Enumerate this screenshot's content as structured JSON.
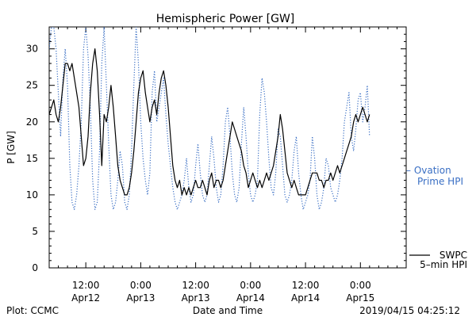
{
  "chart_data": {
    "type": "line",
    "title": "Hemispheric Power [GW]",
    "xlabel": "Date and Time",
    "ylabel": "P [GW]",
    "ylim": [
      0,
      33
    ],
    "xlim_hours": [
      0,
      78
    ],
    "yticks": [
      0,
      5,
      10,
      15,
      20,
      25,
      30
    ],
    "xticks": [
      {
        "hour": 8,
        "line1": "12:00",
        "line2": "Apr12"
      },
      {
        "hour": 20,
        "line1": "0:00",
        "line2": "Apr13"
      },
      {
        "hour": 32,
        "line1": "12:00",
        "line2": "Apr13"
      },
      {
        "hour": 44,
        "line1": "0:00",
        "line2": "Apr14"
      },
      {
        "hour": 56,
        "line1": "12:00",
        "line2": "Apr14"
      },
      {
        "hour": 68,
        "line1": "0:00",
        "line2": "Apr15"
      }
    ],
    "grid": false,
    "legend_position": "right",
    "series": [
      {
        "name": "SWPC 5-min HPI",
        "legend_lines": [
          "SWPC",
          "5–min HPI"
        ],
        "color": "#000000",
        "style": "solid",
        "points": [
          [
            0,
            21
          ],
          [
            0.5,
            22
          ],
          [
            1,
            23
          ],
          [
            1.5,
            21
          ],
          [
            2,
            20
          ],
          [
            2.5,
            22
          ],
          [
            3,
            25
          ],
          [
            3.5,
            28
          ],
          [
            4,
            28
          ],
          [
            4.5,
            27
          ],
          [
            5,
            28
          ],
          [
            5.5,
            26
          ],
          [
            6,
            24
          ],
          [
            6.5,
            22
          ],
          [
            7,
            18
          ],
          [
            7.5,
            14
          ],
          [
            8,
            15
          ],
          [
            8.5,
            18
          ],
          [
            9,
            24
          ],
          [
            9.5,
            28
          ],
          [
            10,
            30
          ],
          [
            10.5,
            27
          ],
          [
            11,
            21
          ],
          [
            11.5,
            14
          ],
          [
            12,
            21
          ],
          [
            12.5,
            20
          ],
          [
            13,
            22
          ],
          [
            13.5,
            25
          ],
          [
            14,
            22
          ],
          [
            14.5,
            18
          ],
          [
            15,
            14
          ],
          [
            15.5,
            12
          ],
          [
            16,
            11
          ],
          [
            16.5,
            10
          ],
          [
            17,
            10
          ],
          [
            17.5,
            11
          ],
          [
            18,
            13
          ],
          [
            18.5,
            16
          ],
          [
            19,
            20
          ],
          [
            19.5,
            24
          ],
          [
            20,
            26
          ],
          [
            20.5,
            27
          ],
          [
            21,
            24
          ],
          [
            21.5,
            22
          ],
          [
            22,
            20
          ],
          [
            22.5,
            22
          ],
          [
            23,
            23
          ],
          [
            23.5,
            21
          ],
          [
            24,
            24
          ],
          [
            24.5,
            26
          ],
          [
            25,
            27
          ],
          [
            25.5,
            25
          ],
          [
            26,
            22
          ],
          [
            26.5,
            18
          ],
          [
            27,
            14
          ],
          [
            27.5,
            12
          ],
          [
            28,
            11
          ],
          [
            28.5,
            12
          ],
          [
            29,
            10
          ],
          [
            29.5,
            11
          ],
          [
            30,
            10
          ],
          [
            30.5,
            11
          ],
          [
            31,
            10
          ],
          [
            31.5,
            11
          ],
          [
            32,
            12
          ],
          [
            32.5,
            11
          ],
          [
            33,
            11
          ],
          [
            33.5,
            12
          ],
          [
            34,
            11
          ],
          [
            34.5,
            10
          ],
          [
            35,
            12
          ],
          [
            35.5,
            13
          ],
          [
            36,
            11
          ],
          [
            36.5,
            12
          ],
          [
            37,
            12
          ],
          [
            37.5,
            11
          ],
          [
            38,
            12
          ],
          [
            38.5,
            14
          ],
          [
            39,
            16
          ],
          [
            39.5,
            18
          ],
          [
            40,
            20
          ],
          [
            40.5,
            19
          ],
          [
            41,
            18
          ],
          [
            41.5,
            17
          ],
          [
            42,
            16
          ],
          [
            42.5,
            14
          ],
          [
            43,
            13
          ],
          [
            43.5,
            11
          ],
          [
            44,
            12
          ],
          [
            44.5,
            13
          ],
          [
            45,
            12
          ],
          [
            45.5,
            11
          ],
          [
            46,
            12
          ],
          [
            46.5,
            11
          ],
          [
            47,
            12
          ],
          [
            47.5,
            13
          ],
          [
            48,
            12
          ],
          [
            48.5,
            13
          ],
          [
            49,
            14
          ],
          [
            49.5,
            16
          ],
          [
            50,
            18
          ],
          [
            50.5,
            21
          ],
          [
            51,
            19
          ],
          [
            51.5,
            16
          ],
          [
            52,
            13
          ],
          [
            52.5,
            12
          ],
          [
            53,
            11
          ],
          [
            53.5,
            12
          ],
          [
            54,
            11
          ],
          [
            54.5,
            10
          ],
          [
            55,
            10
          ],
          [
            55.5,
            10
          ],
          [
            56,
            10
          ],
          [
            56.5,
            11
          ],
          [
            57,
            12
          ],
          [
            57.5,
            13
          ],
          [
            58,
            13
          ],
          [
            58.5,
            13
          ],
          [
            59,
            12
          ],
          [
            59.5,
            12
          ],
          [
            60,
            11
          ],
          [
            60.5,
            12
          ],
          [
            61,
            12
          ],
          [
            61.5,
            13
          ],
          [
            62,
            12
          ],
          [
            62.5,
            13
          ],
          [
            63,
            14
          ],
          [
            63.5,
            13
          ],
          [
            64,
            14
          ],
          [
            64.5,
            15
          ],
          [
            65,
            16
          ],
          [
            65.5,
            17
          ],
          [
            66,
            18
          ],
          [
            66.5,
            20
          ],
          [
            67,
            21
          ],
          [
            67.5,
            20
          ],
          [
            68,
            21
          ],
          [
            68.5,
            22
          ],
          [
            69,
            21
          ],
          [
            69.5,
            20
          ],
          [
            70,
            21
          ]
        ]
      },
      {
        "name": "Ovation Prime HPI",
        "legend_lines": [
          "– Ovation",
          "Prime HPI"
        ],
        "color": "#3a6fc4",
        "style": "dotted",
        "points": [
          [
            0,
            30
          ],
          [
            0.5,
            33
          ],
          [
            1,
            33
          ],
          [
            1.5,
            30
          ],
          [
            2,
            24
          ],
          [
            2.5,
            18
          ],
          [
            3,
            26
          ],
          [
            3.5,
            30
          ],
          [
            4,
            25
          ],
          [
            4.5,
            14
          ],
          [
            5,
            9
          ],
          [
            5.5,
            8
          ],
          [
            6,
            10
          ],
          [
            6.5,
            14
          ],
          [
            7,
            20
          ],
          [
            7.5,
            30
          ],
          [
            8,
            33
          ],
          [
            8.5,
            29
          ],
          [
            9,
            22
          ],
          [
            9.5,
            12
          ],
          [
            10,
            8
          ],
          [
            10.5,
            9
          ],
          [
            11,
            16
          ],
          [
            11.5,
            28
          ],
          [
            12,
            33
          ],
          [
            12.5,
            25
          ],
          [
            13,
            17
          ],
          [
            13.5,
            10
          ],
          [
            14,
            8
          ],
          [
            14.5,
            9
          ],
          [
            15,
            12
          ],
          [
            15.5,
            16
          ],
          [
            16,
            14
          ],
          [
            16.5,
            9
          ],
          [
            17,
            8
          ],
          [
            17.5,
            10
          ],
          [
            18,
            16
          ],
          [
            18.5,
            25
          ],
          [
            19,
            33
          ],
          [
            19.5,
            28
          ],
          [
            20,
            20
          ],
          [
            20.5,
            15
          ],
          [
            21,
            12
          ],
          [
            21.5,
            10
          ],
          [
            22,
            13
          ],
          [
            22.5,
            24
          ],
          [
            23,
            27
          ],
          [
            23.5,
            20
          ],
          [
            24,
            22
          ],
          [
            24.5,
            24
          ],
          [
            25,
            26
          ],
          [
            25.5,
            21
          ],
          [
            26,
            17
          ],
          [
            26.5,
            14
          ],
          [
            27,
            11
          ],
          [
            27.5,
            9
          ],
          [
            28,
            8
          ],
          [
            28.5,
            9
          ],
          [
            29,
            10
          ],
          [
            29.5,
            12
          ],
          [
            30,
            15
          ],
          [
            30.5,
            11
          ],
          [
            31,
            9
          ],
          [
            31.5,
            10
          ],
          [
            32,
            14
          ],
          [
            32.5,
            17
          ],
          [
            33,
            13
          ],
          [
            33.5,
            10
          ],
          [
            34,
            9
          ],
          [
            34.5,
            10
          ],
          [
            35,
            14
          ],
          [
            35.5,
            18
          ],
          [
            36,
            15
          ],
          [
            36.5,
            11
          ],
          [
            37,
            9
          ],
          [
            37.5,
            10
          ],
          [
            38,
            14
          ],
          [
            38.5,
            20
          ],
          [
            39,
            22
          ],
          [
            39.5,
            18
          ],
          [
            40,
            13
          ],
          [
            40.5,
            10
          ],
          [
            41,
            9
          ],
          [
            41.5,
            11
          ],
          [
            42,
            17
          ],
          [
            42.5,
            22
          ],
          [
            43,
            18
          ],
          [
            43.5,
            13
          ],
          [
            44,
            10
          ],
          [
            44.5,
            9
          ],
          [
            45,
            10
          ],
          [
            45.5,
            12
          ],
          [
            46,
            21
          ],
          [
            46.5,
            26
          ],
          [
            47,
            24
          ],
          [
            47.5,
            20
          ],
          [
            48,
            15
          ],
          [
            48.5,
            11
          ],
          [
            49,
            10
          ],
          [
            49.5,
            13
          ],
          [
            50,
            19
          ],
          [
            50.5,
            18
          ],
          [
            51,
            14
          ],
          [
            51.5,
            10
          ],
          [
            52,
            9
          ],
          [
            52.5,
            10
          ],
          [
            53,
            12
          ],
          [
            53.5,
            16
          ],
          [
            54,
            18
          ],
          [
            54.5,
            13
          ],
          [
            55,
            10
          ],
          [
            55.5,
            8
          ],
          [
            56,
            9
          ],
          [
            56.5,
            10
          ],
          [
            57,
            12
          ],
          [
            57.5,
            18
          ],
          [
            58,
            15
          ],
          [
            58.5,
            10
          ],
          [
            59,
            8
          ],
          [
            59.5,
            9
          ],
          [
            60,
            11
          ],
          [
            60.5,
            15
          ],
          [
            61,
            14
          ],
          [
            61.5,
            11
          ],
          [
            62,
            10
          ],
          [
            62.5,
            9
          ],
          [
            63,
            10
          ],
          [
            63.5,
            12
          ],
          [
            64,
            15
          ],
          [
            64.5,
            20
          ],
          [
            65,
            22
          ],
          [
            65.5,
            24
          ],
          [
            66,
            18
          ],
          [
            66.5,
            16
          ],
          [
            67,
            19
          ],
          [
            67.5,
            23
          ],
          [
            68,
            24
          ],
          [
            68.5,
            20
          ],
          [
            69,
            22
          ],
          [
            69.5,
            25
          ],
          [
            70,
            18
          ]
        ]
      }
    ]
  },
  "footer": {
    "left": "Plot: CCMC",
    "center": "Date and Time",
    "right": "2019/04/15 04:25:12"
  }
}
